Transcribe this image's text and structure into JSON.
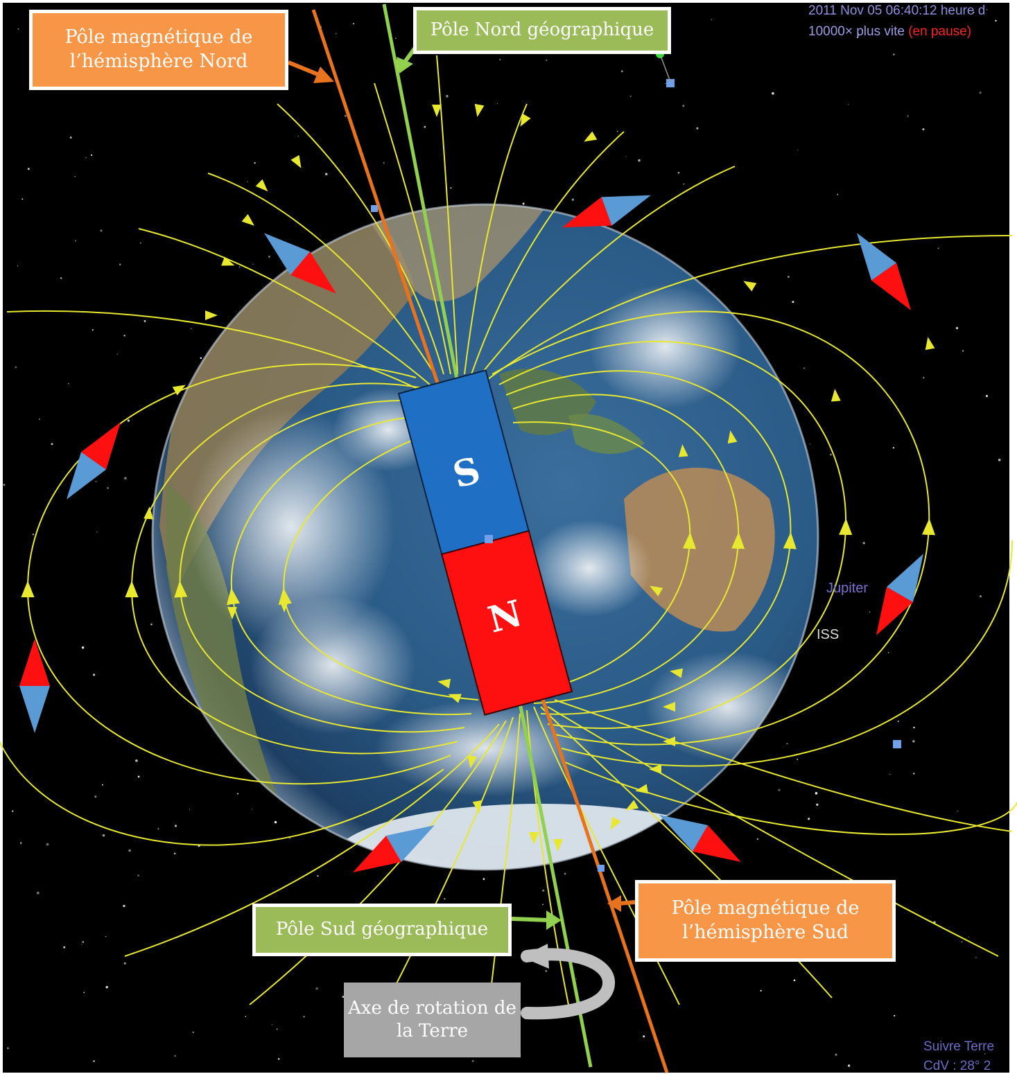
{
  "labels": {
    "north_magnetic_pole": "Pôle magnétique de l’hémisphère Nord",
    "north_geographic_pole": "Pôle Nord géographique",
    "south_magnetic_pole": "Pôle magnétique de l’hémisphère Sud",
    "south_geographic_pole": "Pôle Sud géographique",
    "rotation_axis": "Axe de rotation de la Terre"
  },
  "magnet": {
    "top_letter": "S",
    "bottom_letter": "N"
  },
  "hud": {
    "datetime": "2011 Nov 05 06:40:12 heure d",
    "speed": "10000× plus vite",
    "paused": "(en pause)",
    "jupiter": "Jupiter",
    "iss": "ISS",
    "follow": "Suivre Terre",
    "fov": "CdV : 28° 2"
  },
  "colors": {
    "space": "#000000",
    "field_line": "#e8e830",
    "magnetic_axis": "#e8731e",
    "geographic_axis": "#92d050",
    "magnet_south": "#1f6fc5",
    "magnet_north": "#ff1010",
    "label_orange": "#f79646",
    "label_green": "#9bbb59",
    "label_gray": "#a6a6a6"
  }
}
